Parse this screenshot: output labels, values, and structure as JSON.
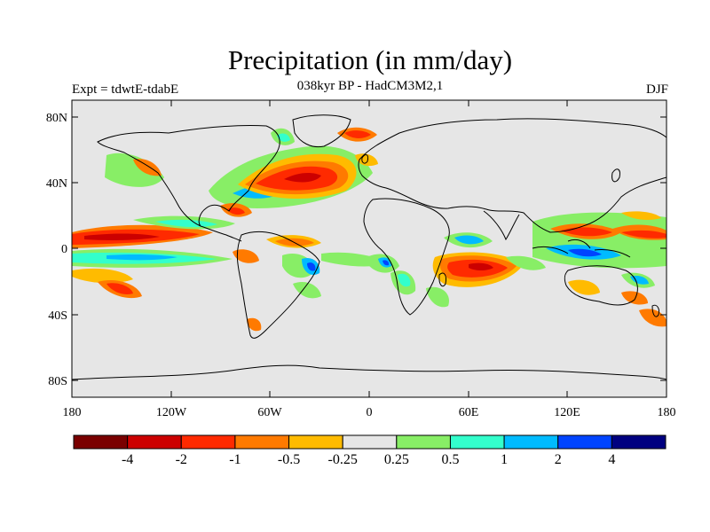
{
  "title": "Precipitation (in mm/day)",
  "subtitle": "038kyr BP - HadCM3M2,1",
  "left_label": "Expt = tdwtE-tdabE",
  "right_label": "DJF",
  "map": {
    "background": "#e6e6e6",
    "lat_ticks": [
      "80N",
      "40N",
      "0",
      "40S",
      "80S"
    ],
    "lon_ticks": [
      "180",
      "120W",
      "60W",
      "0",
      "60E",
      "120E",
      "180"
    ]
  },
  "colorbar": {
    "colors": [
      "#7a0000",
      "#cc0000",
      "#ff2a00",
      "#ff7a00",
      "#ffbb00",
      "#e6e6e6",
      "#88ee66",
      "#33ffcc",
      "#00bbff",
      "#0044ff",
      "#000080"
    ],
    "labels": [
      "-4",
      "-2",
      "-1",
      "-0.5",
      "-0.25",
      "0.25",
      "0.5",
      "1",
      "2",
      "4"
    ]
  }
}
